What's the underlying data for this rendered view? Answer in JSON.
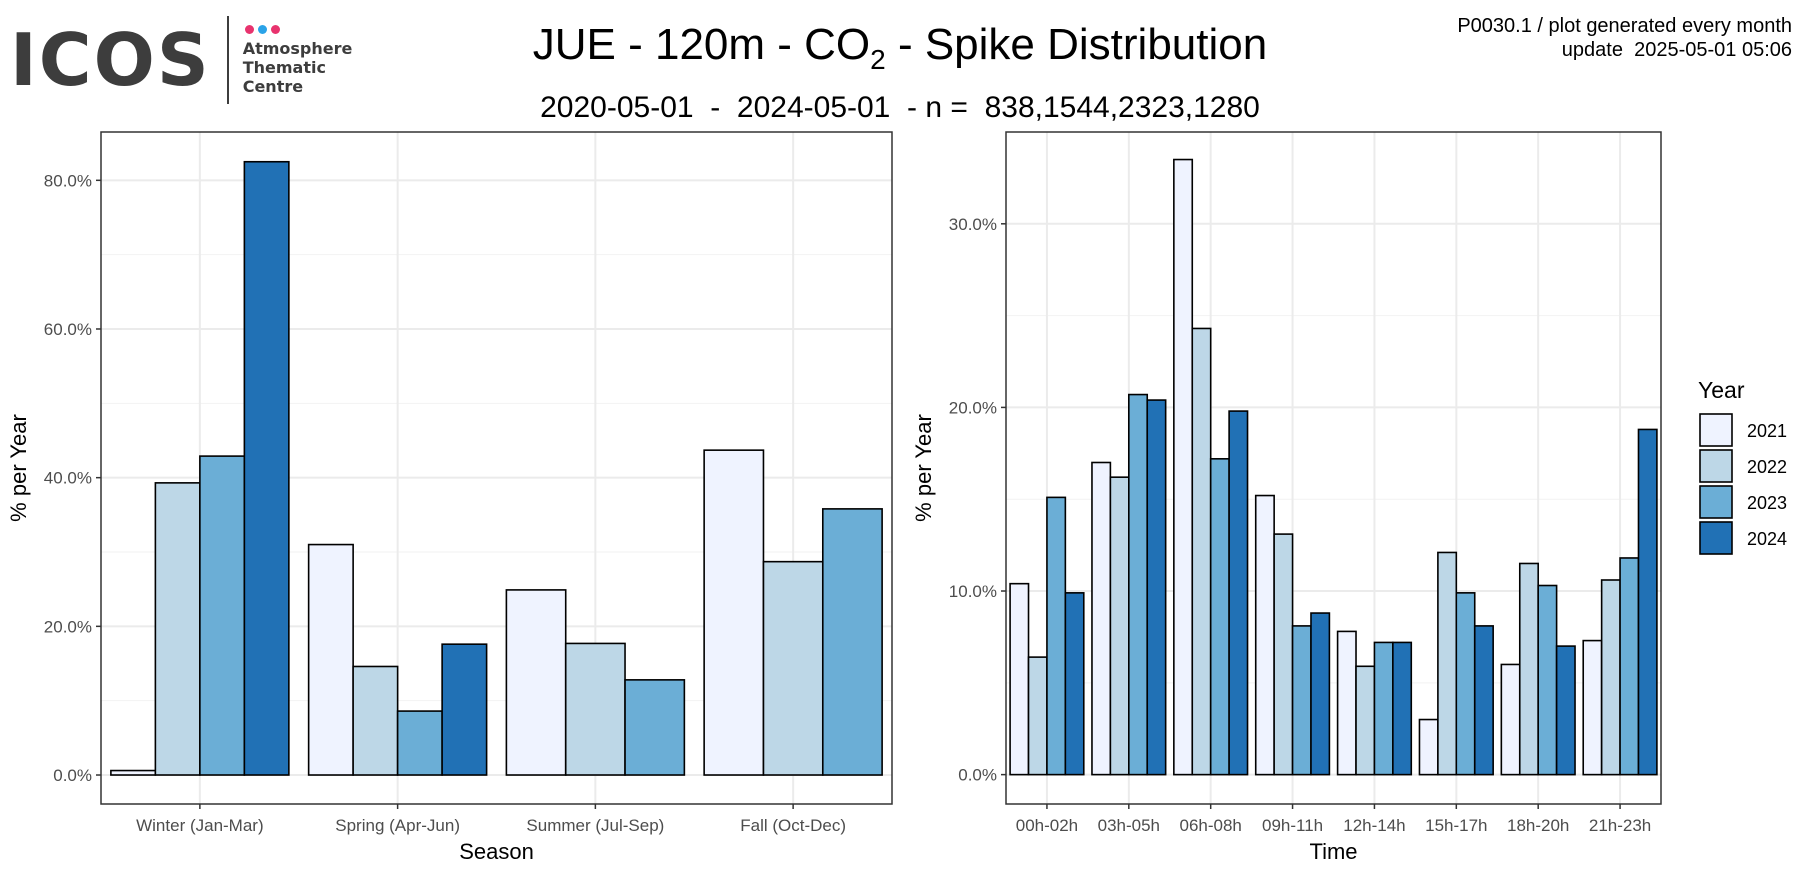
{
  "header": {
    "logo_text": "ICOS",
    "logo_sub": [
      "Atmosphere",
      "Thematic",
      "Centre"
    ],
    "logo_dot_colors": [
      "#e8336e",
      "#2aa3e8",
      "#e8336e"
    ],
    "title_main": "JUE - 120m - CO",
    "title_sub": "2",
    "title_tail": " - Spike Distribution",
    "subtitle": "2020-05-01  -  2024-05-01  - n =  838,1544,2323,1280",
    "meta_line1": "P0030.1 / plot generated every month",
    "meta_line2": "update  2025-05-01 05:06"
  },
  "legend": {
    "title": "Year",
    "entries": [
      "2021",
      "2022",
      "2023",
      "2024"
    ],
    "colors": [
      "#eff3ff",
      "#bdd7e7",
      "#6baed6",
      "#2171b5"
    ]
  },
  "chart_data": [
    {
      "type": "bar",
      "xlabel": "Season",
      "ylabel": "% per Year",
      "categories": [
        "Winter (Jan-Mar)",
        "Spring (Apr-Jun)",
        "Summer (Jul-Sep)",
        "Fall (Oct-Dec)"
      ],
      "ylim": [
        -3.9,
        86.5
      ],
      "yticks": [
        0,
        20,
        40,
        60,
        80
      ],
      "ytick_labels": [
        "0.0%",
        "20.0%",
        "40.0%",
        "60.0%",
        "80.0%"
      ],
      "grid": true,
      "legend_position": "right",
      "series": [
        {
          "name": "2021",
          "values": [
            0.6,
            31.0,
            24.9,
            43.7
          ]
        },
        {
          "name": "2022",
          "values": [
            39.3,
            14.6,
            17.7,
            28.7
          ]
        },
        {
          "name": "2023",
          "values": [
            42.9,
            8.6,
            12.8,
            35.8
          ]
        },
        {
          "name": "2024",
          "values": [
            82.5,
            17.6,
            null,
            null
          ]
        }
      ]
    },
    {
      "type": "bar",
      "xlabel": "Time",
      "ylabel": "% per Year",
      "categories": [
        "00h-02h",
        "03h-05h",
        "06h-08h",
        "09h-11h",
        "12h-14h",
        "15h-17h",
        "18h-20h",
        "21h-23h"
      ],
      "ylim": [
        -1.6,
        35.0
      ],
      "yticks": [
        0,
        10,
        20,
        30
      ],
      "ytick_labels": [
        "0.0%",
        "10.0%",
        "20.0%",
        "30.0%"
      ],
      "grid": true,
      "legend_position": "right",
      "series": [
        {
          "name": "2021",
          "values": [
            10.4,
            17.0,
            33.5,
            15.2,
            7.8,
            3.0,
            6.0,
            7.3
          ]
        },
        {
          "name": "2022",
          "values": [
            6.4,
            16.2,
            24.3,
            13.1,
            5.9,
            12.1,
            11.5,
            10.6
          ]
        },
        {
          "name": "2023",
          "values": [
            15.1,
            20.7,
            17.2,
            8.1,
            7.2,
            9.9,
            10.3,
            11.8
          ]
        },
        {
          "name": "2024",
          "values": [
            9.9,
            20.4,
            19.8,
            8.8,
            7.2,
            8.1,
            7.0,
            18.8
          ]
        }
      ]
    }
  ]
}
